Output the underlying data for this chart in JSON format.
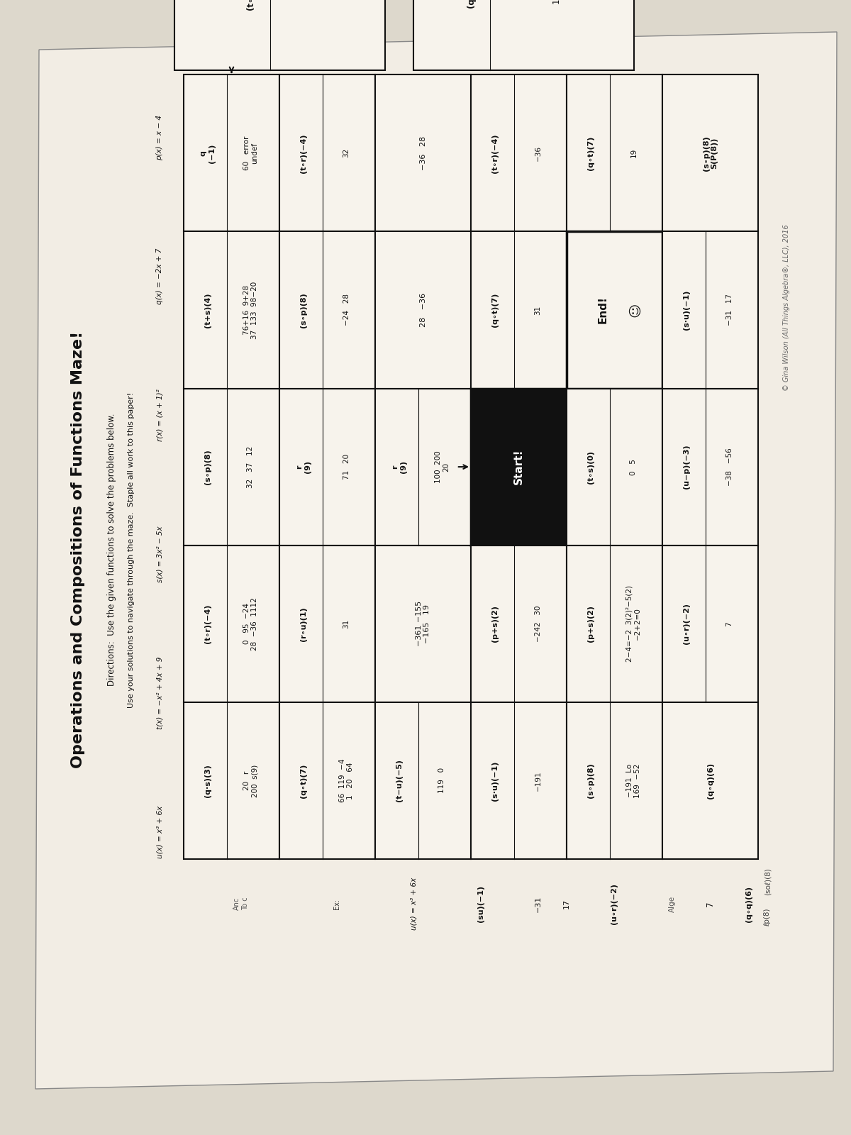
{
  "title": "Operations and Compositions of Functions Maze!",
  "dir1": "Directions:  Use the given functions to solve the problems below.",
  "dir2": "Use your solutions to navigate through the maze.  Staple all work to this paper!",
  "functions": [
    "p(x) = x − 4",
    "q(x) = −2x + 7",
    "r(x) = (x + 1)²",
    "s(x) = 3x² − 5x",
    "t(x) = −x² + 4x + 9",
    "u(x) = x³ + 6x"
  ],
  "page_bg": "#ddd8cc",
  "paper_bg": "#f2ede4",
  "cell_bg": "#f7f3ec",
  "border_col": "#1a1a1a",
  "cells": [
    {
      "r": 0,
      "c": 0,
      "label": "q\n(−1)",
      "vals": "60   error\nundef",
      "bold_border": false
    },
    {
      "r": 0,
      "c": 1,
      "label": "(t+s)(4)",
      "vals": "76+16  9+28\n37  133  98−20",
      "bold_border": false
    },
    {
      "r": 0,
      "c": 2,
      "label": "(s∘p)(8)",
      "vals": "32   37   12",
      "bold_border": false
    },
    {
      "r": 0,
      "c": 3,
      "label": "(t∘r)(−4)",
      "vals": "0   95  −24\n28  −36  1112",
      "bold_border": false
    },
    {
      "r": 0,
      "c": 4,
      "label": "(q·s)(3)",
      "vals": "20   r\n200  s(9)",
      "bold_border": false
    },
    {
      "r": 1,
      "c": 0,
      "label": "(t∘r)(−4)",
      "vals": "32",
      "bold_border": false
    },
    {
      "r": 1,
      "c": 1,
      "label": "(s∘p)(8)",
      "vals": "−24   28",
      "bold_border": false
    },
    {
      "r": 1,
      "c": 2,
      "label": "r\n(9)",
      "vals": "71   20",
      "bold_border": false
    },
    {
      "r": 1,
      "c": 3,
      "label": "(r∘u)(1)",
      "vals": "31",
      "bold_border": false
    },
    {
      "r": 1,
      "c": 4,
      "label": "(q∘t)(7)",
      "vals": "66  119  −4\n1   20   64",
      "bold_border": false
    },
    {
      "r": 2,
      "c": 0,
      "label": "",
      "vals": "−36   28",
      "bold_border": false
    },
    {
      "r": 2,
      "c": 1,
      "label": "",
      "vals": "28   −36",
      "bold_border": false
    },
    {
      "r": 2,
      "c": 2,
      "label": "r\n(9)",
      "vals": "100  200\n20",
      "bold_border": false
    },
    {
      "r": 2,
      "c": 3,
      "label": "",
      "vals": "−361 −155\n−165   19",
      "bold_border": false
    },
    {
      "r": 2,
      "c": 4,
      "label": "(t−u)(−5)",
      "vals": "119   0",
      "bold_border": false
    },
    {
      "r": 3,
      "c": 0,
      "label": "(t∘r)(−4)",
      "vals": "−36",
      "bold_border": false
    },
    {
      "r": 3,
      "c": 1,
      "label": "(q∘t)(7)",
      "vals": "31",
      "bold_border": false
    },
    {
      "r": 3,
      "c": 2,
      "label": "Start!",
      "vals": "",
      "bold_border": true,
      "start": true
    },
    {
      "r": 3,
      "c": 3,
      "label": "(p+s)(2)",
      "vals": "−242   30",
      "bold_border": false
    },
    {
      "r": 3,
      "c": 4,
      "label": "(s·u)(−1)",
      "vals": "−191",
      "bold_border": false
    },
    {
      "r": 4,
      "c": 0,
      "label": "(q∘t)(7)",
      "vals": "19",
      "bold_border": false
    },
    {
      "r": 4,
      "c": 1,
      "label": "End!",
      "vals": "☺",
      "bold_border": true,
      "end": true
    },
    {
      "r": 4,
      "c": 2,
      "label": "(t∘s)(0)",
      "vals": "0   5",
      "bold_border": false
    },
    {
      "r": 4,
      "c": 3,
      "label": "(p+s)(2)",
      "vals": "2−4=−2  3(2)²−5(2)\n−2+2=0",
      "bold_border": false
    },
    {
      "r": 4,
      "c": 4,
      "label": "(s∘p)(8)",
      "vals": "−191  Lo\n169  −52",
      "bold_border": false
    },
    {
      "r": 5,
      "c": 0,
      "label": "(s∘p)(8)\nS(P(8))",
      "vals": "",
      "bold_border": false
    },
    {
      "r": 5,
      "c": 1,
      "label": "(s·u)(−1)",
      "vals": "−31   17",
      "bold_border": false
    },
    {
      "r": 5,
      "c": 2,
      "label": "(u−p)(−3)",
      "vals": "−38   −56",
      "bold_border": false
    },
    {
      "r": 5,
      "c": 3,
      "label": "(u∘r)(−2)",
      "vals": "7",
      "bold_border": false
    },
    {
      "r": 5,
      "c": 4,
      "label": "(q∘q)(6)",
      "vals": "",
      "bold_border": false
    }
  ],
  "maze_lines": [
    [
      0,
      0,
      "b",
      1,
      0,
      "t"
    ],
    [
      0,
      1,
      "b",
      1,
      1,
      "t"
    ],
    [
      1,
      0,
      "b",
      1,
      1,
      "t"
    ],
    [
      1,
      1,
      "b",
      1,
      2,
      "t"
    ],
    [
      2,
      0,
      "b",
      1,
      0,
      "b"
    ],
    [
      3,
      0,
      "b",
      2,
      0,
      "b"
    ],
    [
      0,
      1,
      "b",
      1,
      2,
      "t"
    ],
    [
      1,
      1,
      "b",
      0,
      2,
      "t"
    ],
    [
      2,
      1,
      "b",
      1,
      2,
      "t"
    ],
    [
      2,
      1,
      "b",
      3,
      2,
      "t"
    ],
    [
      3,
      1,
      "b",
      2,
      2,
      "t"
    ],
    [
      3,
      1,
      "b",
      4,
      2,
      "t"
    ],
    [
      4,
      1,
      "b",
      3,
      2,
      "t"
    ],
    [
      4,
      1,
      "b",
      5,
      2,
      "t"
    ],
    [
      0,
      2,
      "b",
      1,
      3,
      "t"
    ],
    [
      0,
      2,
      "b",
      0,
      3,
      "t"
    ],
    [
      1,
      2,
      "b",
      0,
      3,
      "t"
    ],
    [
      1,
      2,
      "b",
      2,
      3,
      "t"
    ],
    [
      2,
      2,
      "b",
      1,
      3,
      "t"
    ],
    [
      2,
      2,
      "b",
      3,
      3,
      "t"
    ],
    [
      3,
      2,
      "b",
      2,
      3,
      "t"
    ],
    [
      3,
      2,
      "b",
      4,
      3,
      "t"
    ],
    [
      4,
      2,
      "b",
      3,
      3,
      "t"
    ],
    [
      4,
      2,
      "b",
      5,
      3,
      "t"
    ],
    [
      0,
      3,
      "b",
      0,
      4,
      "t"
    ],
    [
      0,
      3,
      "b",
      1,
      4,
      "t"
    ],
    [
      1,
      3,
      "b",
      0,
      4,
      "t"
    ],
    [
      1,
      3,
      "b",
      2,
      4,
      "t"
    ],
    [
      2,
      3,
      "b",
      1,
      4,
      "t"
    ],
    [
      2,
      3,
      "b",
      3,
      4,
      "t"
    ],
    [
      3,
      3,
      "b",
      2,
      4,
      "t"
    ],
    [
      3,
      3,
      "b",
      4,
      4,
      "t"
    ],
    [
      4,
      3,
      "b",
      3,
      4,
      "t"
    ],
    [
      4,
      3,
      "b",
      5,
      4,
      "t"
    ],
    [
      0,
      4,
      "b",
      0,
      5,
      "t"
    ],
    [
      0,
      4,
      "b",
      1,
      5,
      "t"
    ],
    [
      1,
      4,
      "b",
      1,
      5,
      "t"
    ],
    [
      1,
      4,
      "b",
      2,
      5,
      "t"
    ],
    [
      2,
      4,
      "b",
      2,
      5,
      "t"
    ],
    [
      2,
      4,
      "b",
      3,
      5,
      "t"
    ],
    [
      3,
      4,
      "b",
      3,
      5,
      "t"
    ],
    [
      3,
      4,
      "b",
      4,
      5,
      "t"
    ],
    [
      4,
      4,
      "b",
      4,
      5,
      "t"
    ]
  ],
  "right_margin_texts": [
    "Anc\nTo c",
    "Ex:",
    "u(x) = x³ + 6x",
    "(su)(−1)",
    "−31",
    "17",
    "(uor)(−2)",
    "Alge",
    "7",
    "(q∘q)(6)"
  ],
  "copyright": "© Gina Wilson (All Things Algebra®, LLC), 2016"
}
